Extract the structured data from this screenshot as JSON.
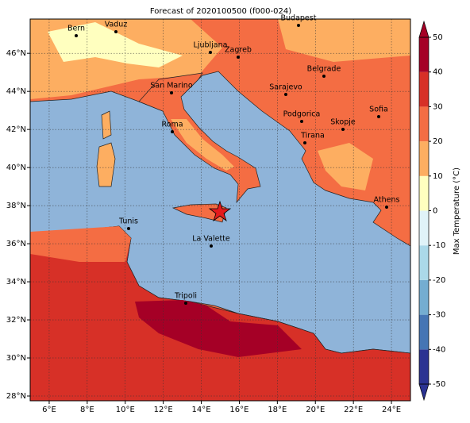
{
  "title": "Forecast of 2020100500 (f000-024)",
  "xlim": [
    5,
    25
  ],
  "ylim": [
    27.75,
    47.8
  ],
  "xticks": [
    {
      "value": 6,
      "label": "6°E"
    },
    {
      "value": 8,
      "label": "8°E"
    },
    {
      "value": 10,
      "label": "10°E"
    },
    {
      "value": 12,
      "label": "12°E"
    },
    {
      "value": 14,
      "label": "14°E"
    },
    {
      "value": 16,
      "label": "16°E"
    },
    {
      "value": 18,
      "label": "18°E"
    },
    {
      "value": 20,
      "label": "20°E"
    },
    {
      "value": 22,
      "label": "22°E"
    },
    {
      "value": 24,
      "label": "24°E"
    }
  ],
  "yticks": [
    {
      "value": 28,
      "label": "28°N"
    },
    {
      "value": 30,
      "label": "30°N"
    },
    {
      "value": 32,
      "label": "32°N"
    },
    {
      "value": 34,
      "label": "34°N"
    },
    {
      "value": 36,
      "label": "36°N"
    },
    {
      "value": 38,
      "label": "38°N"
    },
    {
      "value": 40,
      "label": "40°N"
    },
    {
      "value": 42,
      "label": "42°N"
    },
    {
      "value": 44,
      "label": "44°N"
    },
    {
      "value": 46,
      "label": "46°N"
    }
  ],
  "grid": true,
  "cities": [
    "Bern",
    "Vaduz",
    "Budapest",
    "Ljubljana",
    "Zagreb",
    "Belgrade",
    "San Marino",
    "Sarajevo",
    "Podgorica",
    "Sofia",
    "Skopje",
    "Tirana",
    "Roma",
    "Athens",
    "Tunis",
    "La Valette",
    "Tripoli"
  ],
  "colorbar": {
    "label": "Max Temperature (°C)",
    "ticks": [
      -50,
      -40,
      -30,
      -20,
      -10,
      0,
      10,
      20,
      30,
      40,
      50
    ],
    "colors": [
      "#2b3392",
      "#4575b4",
      "#74add1",
      "#abd9e9",
      "#e0f3f8",
      "#ffffbf",
      "#fdae61",
      "#f46d43",
      "#d73027",
      "#a50026"
    ]
  }
}
